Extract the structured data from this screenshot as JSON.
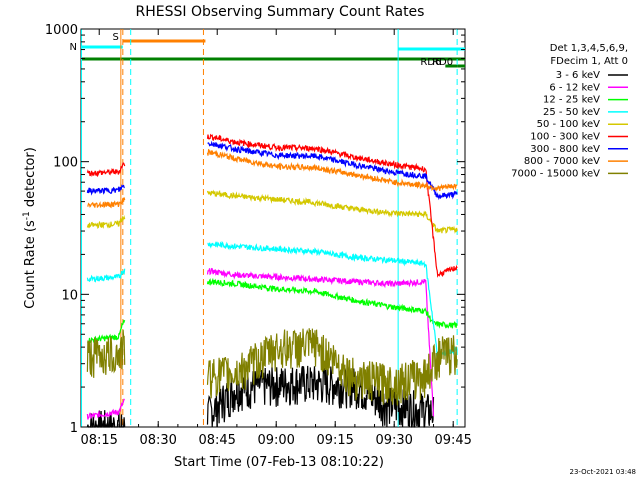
{
  "chart_data": {
    "type": "line",
    "title": "RHESSI Observing Summary Count Rates",
    "xlabel": "Start Time (07-Feb-13 08:10:22)",
    "ylabel_main": "Count Rate (s",
    "ylabel_sup": "-1",
    "ylabel_rest": " detector",
    "ylabel_end": ")",
    "y_scale": "log",
    "ylim": [
      1,
      1000
    ],
    "xlim": [
      "08:10:22",
      "09:48:00"
    ],
    "x_ticks": [
      "08:15",
      "08:30",
      "08:45",
      "09:00",
      "09:15",
      "09:30",
      "09:45"
    ],
    "y_ticks": [
      "1",
      "10",
      "100",
      "1000"
    ],
    "legend_header": [
      "Det 1,3,4,5,6,9,",
      "FDecim 1, Att 0"
    ],
    "series": [
      {
        "name": "3 - 6 keV",
        "color": "#000000",
        "t": [
          "08:12",
          "08:20",
          "08:42",
          "08:50",
          "09:05",
          "09:20",
          "09:28",
          "09:35",
          "09:40"
        ],
        "values": [
          1.0,
          1.0,
          1.2,
          2.0,
          2.2,
          2.1,
          1.5,
          1.4,
          1.3
        ]
      },
      {
        "name": "6 - 12 keV",
        "color": "#ff00ff",
        "t": [
          "08:12",
          "08:20",
          "08:21",
          "08:43",
          "08:50",
          "09:00",
          "09:10",
          "09:20",
          "09:30",
          "09:38",
          "09:40"
        ],
        "values": [
          1.2,
          1.3,
          1.5,
          15,
          14,
          13.5,
          13,
          12.5,
          12,
          12.5,
          1.2
        ]
      },
      {
        "name": "12 - 25 keV",
        "color": "#00ff00",
        "t": [
          "08:12",
          "08:20",
          "08:21",
          "08:43",
          "08:50",
          "09:00",
          "09:10",
          "09:20",
          "09:30",
          "09:38",
          "09:40",
          "09:46"
        ],
        "values": [
          4.5,
          4.8,
          6,
          12.5,
          12,
          11,
          10.5,
          9,
          8,
          7.5,
          6,
          5.8
        ]
      },
      {
        "name": "25 - 50 keV",
        "color": "#00ffff",
        "t": [
          "08:12",
          "08:20",
          "08:21",
          "08:43",
          "08:50",
          "09:00",
          "09:10",
          "09:20",
          "09:30",
          "09:38",
          "09:41",
          "09:46"
        ],
        "values": [
          13,
          13.5,
          15,
          24,
          23,
          22,
          21,
          19,
          18,
          17,
          3.5,
          3.8
        ]
      },
      {
        "name": "50 - 100 keV",
        "color": "#d4c800",
        "t": [
          "08:12",
          "08:20",
          "08:21",
          "08:43",
          "08:50",
          "09:00",
          "09:10",
          "09:20",
          "09:30",
          "09:38",
          "09:41",
          "09:46"
        ],
        "values": [
          33,
          34,
          38,
          58,
          55,
          52,
          49,
          44,
          41,
          40,
          30,
          31
        ]
      },
      {
        "name": "100 - 300 keV",
        "color": "#ff0000",
        "t": [
          "08:12",
          "08:20",
          "08:21",
          "08:43",
          "08:50",
          "09:00",
          "09:10",
          "09:20",
          "09:30",
          "09:38",
          "09:41",
          "09:46"
        ],
        "values": [
          82,
          84,
          95,
          155,
          140,
          128,
          126,
          108,
          95,
          88,
          14,
          16
        ]
      },
      {
        "name": "300 - 800 keV",
        "color": "#0000ff",
        "t": [
          "08:12",
          "08:20",
          "08:21",
          "08:43",
          "08:50",
          "09:00",
          "09:10",
          "09:20",
          "09:30",
          "09:38",
          "09:41",
          "09:46"
        ],
        "values": [
          60,
          61,
          65,
          138,
          124,
          112,
          110,
          95,
          83,
          78,
          55,
          57
        ]
      },
      {
        "name": "800 - 7000 keV",
        "color": "#ff8000",
        "t": [
          "08:12",
          "08:20",
          "08:21",
          "08:43",
          "08:50",
          "09:00",
          "09:10",
          "09:20",
          "09:30",
          "09:38",
          "09:41",
          "09:46"
        ],
        "values": [
          47,
          48,
          51,
          118,
          105,
          92,
          90,
          80,
          70,
          66,
          63,
          66
        ]
      },
      {
        "name": "7000 - 15000 keV",
        "color": "#808000",
        "t": [
          "08:12",
          "08:20",
          "08:21",
          "08:43",
          "08:50",
          "09:00",
          "09:10",
          "09:20",
          "09:30",
          "09:38",
          "09:41",
          "09:46"
        ],
        "values": [
          3.5,
          3.6,
          4.0,
          2.5,
          2.6,
          4.0,
          4.2,
          2.4,
          2.2,
          2.5,
          3.5,
          3.8
        ]
      }
    ],
    "flag_bars": [
      {
        "label": "S",
        "color": "#ff8000",
        "t0": "08:21",
        "t1": "08:42",
        "y": 1000
      },
      {
        "label": "N",
        "color": "#00ffff",
        "t0": "08:10:22",
        "t1": "08:21",
        "y": 1000
      },
      {
        "label": "",
        "color": "#00ffff",
        "t0": "09:31",
        "t1": "09:48",
        "y": 1000
      },
      {
        "label": "",
        "color": "#008000",
        "t0": "08:10:22",
        "t1": "09:48",
        "y": 1000
      },
      {
        "label": "RD6",
        "color": "#008000",
        "t0": "09:43",
        "t1": "09:46",
        "y": 1000
      },
      {
        "label": "RD0",
        "color": "#008000",
        "t0": "09:46",
        "t1": "09:48",
        "y": 1000
      }
    ],
    "vlines": [
      {
        "t": "08:21:00",
        "color": "#ff8000"
      },
      {
        "t": "08:41:30",
        "color": "#ff8000"
      },
      {
        "t": "08:23:00",
        "color": "#00ffff"
      },
      {
        "t": "09:46:00",
        "color": "#00ffff"
      }
    ],
    "solid_vlines": [
      {
        "t": "08:10:30",
        "color": "#00ffff"
      },
      {
        "t": "08:20:30",
        "color": "#ff8000"
      },
      {
        "t": "09:31:00",
        "color": "#00ffff"
      }
    ],
    "timestamp": "23-Oct-2021 03:48"
  }
}
